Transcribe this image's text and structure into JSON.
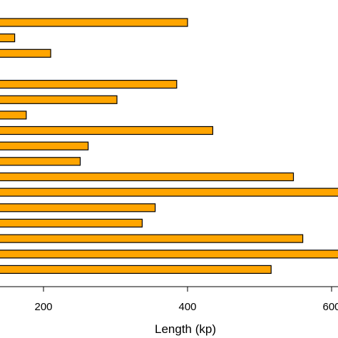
{
  "chart_data": {
    "type": "bar",
    "orientation": "horizontal",
    "xlabel": "Length (kp)",
    "ylabel": "",
    "title": "",
    "xlim": [
      118,
      605
    ],
    "xticks": [
      200,
      400,
      600
    ],
    "xtick_labels": [
      "200",
      "400",
      "600"
    ],
    "bar_color": "#FFA500",
    "bar_edge_color": "#000000",
    "rows": 18,
    "bars": [
      {
        "row": 1,
        "value": 400
      },
      {
        "row": 2,
        "value": 160
      },
      {
        "row": 3,
        "value": 210
      },
      {
        "row": 5,
        "value": 385
      },
      {
        "row": 6,
        "value": 302
      },
      {
        "row": 7,
        "value": 176
      },
      {
        "row": 8,
        "value": 435
      },
      {
        "row": 9,
        "value": 262
      },
      {
        "row": 10,
        "value": 251
      },
      {
        "row": 11,
        "value": 547
      },
      {
        "row": 12,
        "value": 610
      },
      {
        "row": 13,
        "value": 355
      },
      {
        "row": 14,
        "value": 337
      },
      {
        "row": 15,
        "value": 560
      },
      {
        "row": 16,
        "value": 610
      },
      {
        "row": 17,
        "value": 516
      }
    ]
  }
}
